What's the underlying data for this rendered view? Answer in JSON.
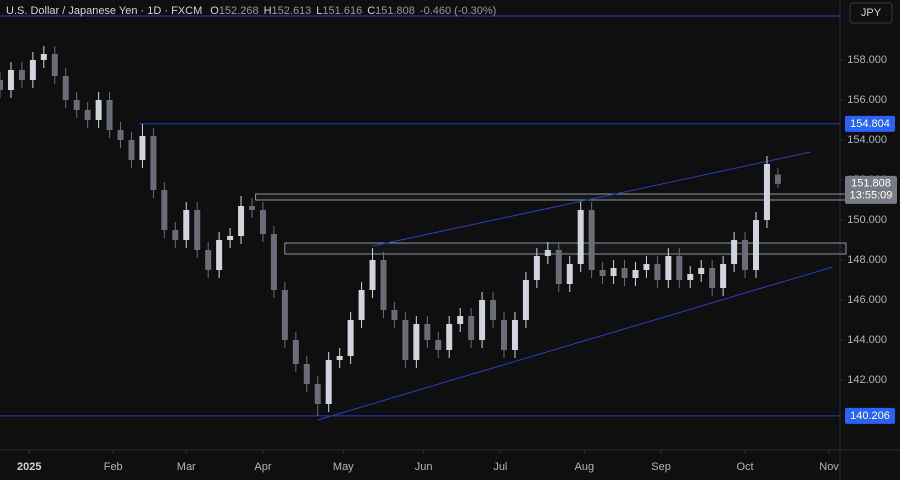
{
  "chart_data": {
    "type": "candlestick",
    "title": "U.S. Dollar / Japanese Yen · 1D · FXCM",
    "ohlc_labels": [
      "O",
      "H",
      "L",
      "C"
    ],
    "change": "-0.460 (-0.30%)",
    "currency": "JPY",
    "countdown": "13:55:09",
    "up_color": "#d1d4dc",
    "down_color": "#6a6d78",
    "line_color": "#2a3fb8",
    "xlim": [
      0,
      230
    ],
    "xticks": [
      {
        "value": 8,
        "label": "2025"
      },
      {
        "value": 31,
        "label": "Feb"
      },
      {
        "value": 51,
        "label": "Mar"
      },
      {
        "value": 72,
        "label": "Apr"
      },
      {
        "value": 94,
        "label": "May"
      },
      {
        "value": 116,
        "label": "Jun"
      },
      {
        "value": 137,
        "label": "Jul"
      },
      {
        "value": 160,
        "label": "Aug"
      },
      {
        "value": 181,
        "label": "Sep"
      },
      {
        "value": 204,
        "label": "Oct"
      },
      {
        "value": 227,
        "label": "Nov"
      }
    ],
    "ylim": [
      138.5,
      161.0
    ],
    "yticks": [
      {
        "value": 142,
        "label": "142.000"
      },
      {
        "value": 144,
        "label": "144.000"
      },
      {
        "value": 146,
        "label": "146.000"
      },
      {
        "value": 148,
        "label": "148.000"
      },
      {
        "value": 150,
        "label": "150.000"
      },
      {
        "value": 152,
        "label": "152.000"
      },
      {
        "value": 154,
        "label": "154.000"
      },
      {
        "value": 156,
        "label": "156.000"
      },
      {
        "value": 158,
        "label": "158.000"
      }
    ],
    "x": [
      0,
      3,
      6,
      9,
      12,
      15,
      18,
      21,
      24,
      27,
      30,
      33,
      36,
      39,
      42,
      45,
      48,
      51,
      54,
      57,
      60,
      63,
      66,
      69,
      72,
      75,
      78,
      81,
      84,
      87,
      90,
      93,
      96,
      99,
      102,
      105,
      108,
      111,
      114,
      117,
      120,
      123,
      126,
      129,
      132,
      135,
      138,
      141,
      144,
      147,
      150,
      153,
      156,
      159,
      162,
      165,
      168,
      171,
      174,
      177,
      180,
      183,
      186,
      189,
      192,
      195,
      198,
      201,
      204,
      207,
      210,
      213
    ],
    "open": [
      157.0,
      156.5,
      157.5,
      157.0,
      158.0,
      158.3,
      157.2,
      156.0,
      155.5,
      155.0,
      156.0,
      154.5,
      154.0,
      153.0,
      154.2,
      151.5,
      149.5,
      149.0,
      150.5,
      148.5,
      147.5,
      149.0,
      149.2,
      150.7,
      150.5,
      149.3,
      146.5,
      144.0,
      142.8,
      141.8,
      140.8,
      143.0,
      143.2,
      145.0,
      146.5,
      148.0,
      145.5,
      145.0,
      143.0,
      144.8,
      144.0,
      143.5,
      144.8,
      145.2,
      144.0,
      146.0,
      145.0,
      143.5,
      145.0,
      147.0,
      148.2,
      148.5,
      146.8,
      147.8,
      150.5,
      147.5,
      147.2,
      147.6,
      147.1,
      147.5,
      147.8,
      147.0,
      148.2,
      147.0,
      147.3,
      147.6,
      146.6,
      147.8,
      149.0,
      147.5,
      150.0,
      152.268
    ],
    "high": [
      157.4,
      157.9,
      157.9,
      158.4,
      158.7,
      158.7,
      157.6,
      156.4,
      155.9,
      156.4,
      156.4,
      154.9,
      154.4,
      154.8,
      154.6,
      151.9,
      149.9,
      150.9,
      150.9,
      148.9,
      149.4,
      149.6,
      151.2,
      151.1,
      150.9,
      149.7,
      146.9,
      144.4,
      143.2,
      142.2,
      143.4,
      143.6,
      145.4,
      146.9,
      148.6,
      148.4,
      145.9,
      145.4,
      145.2,
      145.2,
      144.4,
      145.2,
      145.6,
      145.6,
      146.4,
      146.4,
      145.4,
      145.4,
      147.4,
      148.6,
      148.9,
      148.9,
      148.2,
      150.9,
      150.9,
      147.9,
      148.0,
      148.0,
      147.9,
      148.2,
      148.2,
      148.6,
      148.6,
      147.7,
      148.0,
      148.0,
      148.2,
      149.4,
      149.4,
      150.4,
      153.2,
      152.613
    ],
    "low": [
      156.1,
      156.1,
      156.6,
      156.6,
      157.6,
      156.8,
      155.6,
      155.1,
      154.6,
      154.6,
      154.1,
      153.6,
      152.6,
      152.6,
      151.1,
      149.1,
      148.6,
      148.6,
      148.1,
      147.1,
      147.1,
      148.6,
      148.8,
      150.1,
      148.9,
      146.1,
      143.6,
      142.4,
      141.4,
      140.2,
      140.4,
      142.6,
      142.8,
      144.6,
      146.1,
      145.1,
      144.6,
      142.6,
      142.6,
      143.6,
      143.1,
      143.1,
      144.4,
      143.6,
      143.6,
      144.6,
      143.1,
      143.1,
      144.6,
      146.6,
      147.8,
      146.4,
      146.4,
      147.4,
      147.1,
      146.8,
      146.8,
      146.7,
      146.7,
      147.1,
      146.6,
      146.6,
      146.6,
      146.6,
      146.9,
      146.2,
      146.2,
      147.4,
      147.1,
      147.1,
      149.6,
      151.616
    ],
    "close": [
      156.5,
      157.5,
      157.0,
      158.0,
      158.3,
      157.2,
      156.0,
      155.5,
      155.0,
      156.0,
      154.5,
      154.0,
      153.0,
      154.2,
      151.5,
      149.5,
      149.0,
      150.5,
      148.5,
      147.5,
      149.0,
      149.2,
      150.7,
      150.5,
      149.3,
      146.5,
      144.0,
      142.8,
      141.8,
      140.8,
      143.0,
      143.2,
      145.0,
      146.5,
      148.0,
      145.5,
      145.0,
      143.0,
      144.8,
      144.0,
      143.5,
      144.8,
      145.2,
      144.0,
      146.0,
      145.0,
      143.5,
      145.0,
      147.0,
      148.2,
      148.5,
      146.8,
      147.8,
      150.5,
      147.5,
      147.2,
      147.6,
      147.1,
      147.5,
      147.8,
      147.0,
      148.2,
      147.0,
      147.3,
      147.6,
      146.6,
      147.8,
      149.0,
      147.5,
      150.0,
      152.8,
      151.808
    ],
    "levels": [
      160.2,
      154.804,
      140.206
    ],
    "level_starts": [
      0,
      38,
      0
    ],
    "zones": [
      {
        "x0": 70,
        "range": [
          151.0,
          151.3
        ]
      },
      {
        "x0": 78,
        "range": [
          148.3,
          148.85
        ]
      }
    ],
    "trendlines": [
      {
        "x": [
          102,
          222
        ],
        "y": [
          148.7,
          153.4
        ]
      },
      {
        "x": [
          87,
          228
        ],
        "y": [
          140.0,
          147.65
        ]
      }
    ]
  }
}
